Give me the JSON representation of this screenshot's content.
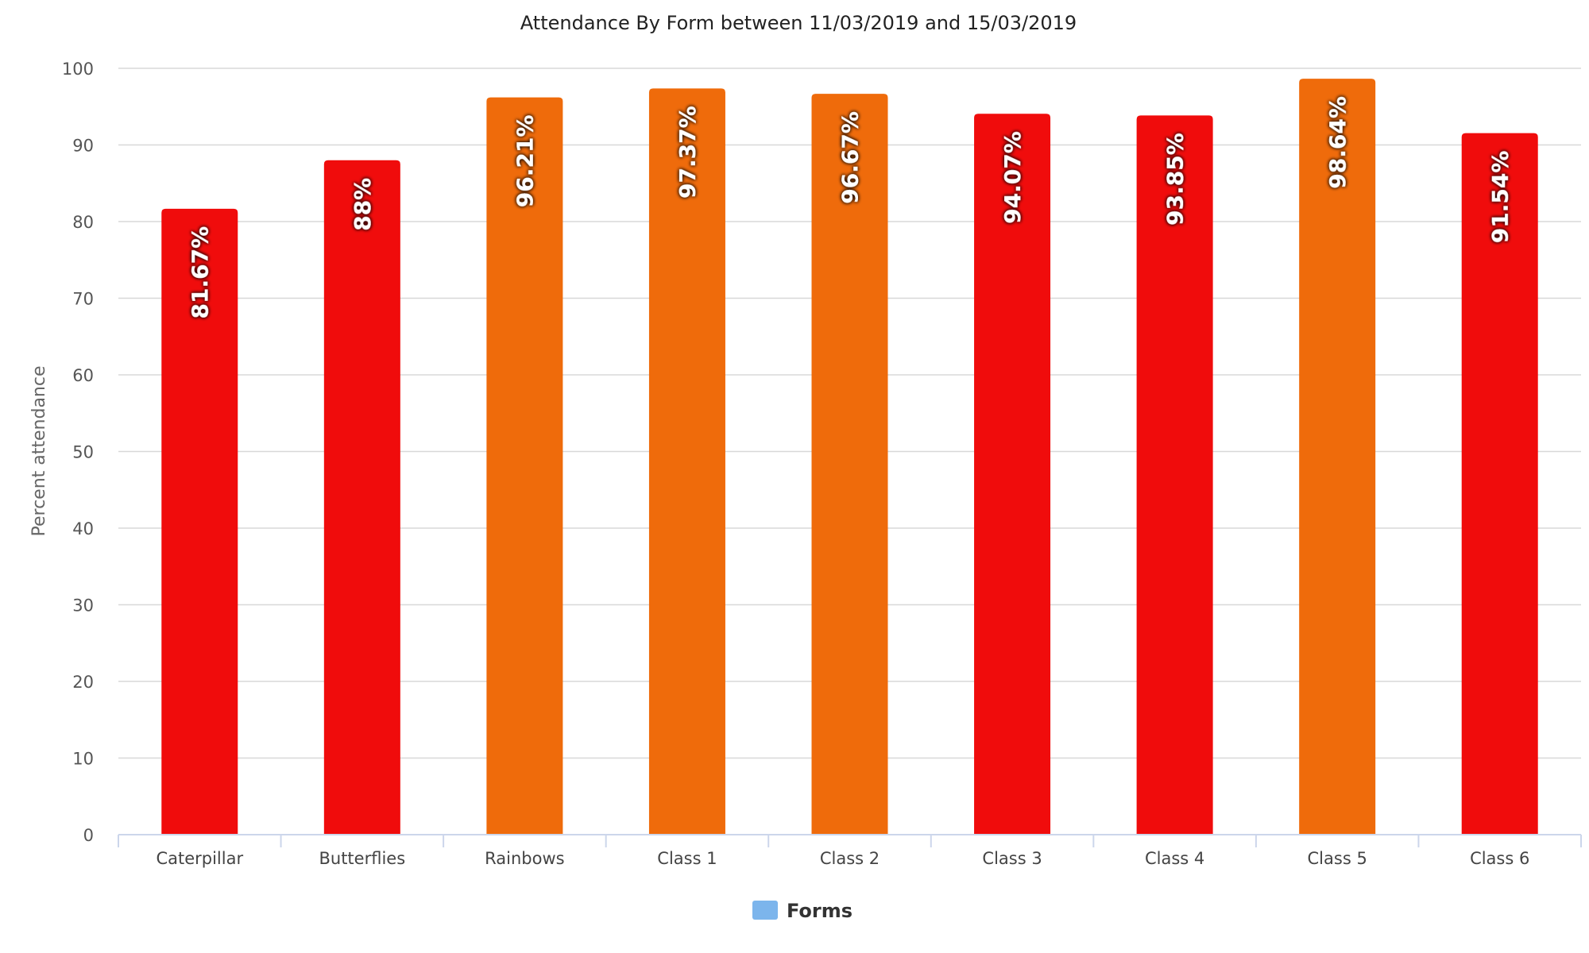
{
  "chart_data": {
    "type": "bar",
    "title": "Attendance By Form between 11/03/2019 and 15/03/2019",
    "ylabel": "Percent attendance",
    "xlabel": "",
    "ylim": [
      0,
      100
    ],
    "yticks": [
      0,
      10,
      20,
      30,
      40,
      50,
      60,
      70,
      80,
      90,
      100
    ],
    "grid": true,
    "legend_position": "bottom-center",
    "categories": [
      "Caterpillar",
      "Butterflies",
      "Rainbows",
      "Class 1",
      "Class 2",
      "Class 3",
      "Class 4",
      "Class 5",
      "Class 6"
    ],
    "series": [
      {
        "name": "Forms",
        "values": [
          81.67,
          88,
          96.21,
          97.37,
          96.67,
          94.07,
          93.85,
          98.64,
          91.54
        ],
        "data_labels": [
          "81.67%",
          "88%",
          "96.21%",
          "97.37%",
          "96.67%",
          "94.07%",
          "93.85%",
          "98.64%",
          "91.54%"
        ],
        "colors": [
          "#f00c0c",
          "#f00c0c",
          "#ef6b0b",
          "#ef6b0b",
          "#ef6b0b",
          "#f00c0c",
          "#f00c0c",
          "#ef6b0b",
          "#f00c0c"
        ],
        "legend_color": "#7cb5ec"
      }
    ]
  }
}
